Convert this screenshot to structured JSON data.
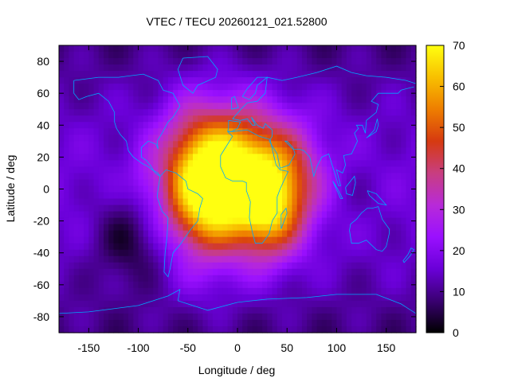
{
  "chart_data": {
    "type": "heatmap",
    "title": "VTEC / TECU 20260121_021.52800",
    "xlabel": "Longitude / deg",
    "ylabel": "Latitude / deg",
    "xlim": [
      -180,
      180
    ],
    "ylim": [
      -90,
      90
    ],
    "x_ticks": [
      -150,
      -100,
      -50,
      0,
      50,
      100,
      150
    ],
    "y_ticks": [
      -80,
      -60,
      -40,
      -20,
      0,
      20,
      40,
      60,
      80
    ],
    "colorbar": {
      "range": [
        0,
        70
      ],
      "ticks": [
        0,
        10,
        20,
        30,
        40,
        50,
        60,
        70
      ],
      "colors": [
        "#000000",
        "#3a0072",
        "#6a00d8",
        "#9a10ff",
        "#b82ad8",
        "#c83e80",
        "#d63a10",
        "#ee7e00",
        "#f8c000",
        "#ffff10"
      ]
    },
    "hotspots": [
      {
        "lon": 0,
        "lat": 10,
        "peak_tecu": 68,
        "lon_spread": 35,
        "lat_spread": 28
      },
      {
        "lon": -30,
        "lat": -10,
        "peak_tecu": 40,
        "lon_spread": 25,
        "lat_spread": 30
      },
      {
        "lon": -50,
        "lat": 10,
        "peak_tecu": 38,
        "lon_spread": 25,
        "lat_spread": 30
      },
      {
        "lon": 30,
        "lat": -15,
        "peak_tecu": 45,
        "lon_spread": 22,
        "lat_spread": 22
      },
      {
        "lon": 55,
        "lat": 5,
        "peak_tecu": 35,
        "lon_spread": 25,
        "lat_spread": 25
      },
      {
        "lon": -95,
        "lat": 5,
        "peak_tecu": 22,
        "lon_spread": 10,
        "lat_spread": 15
      },
      {
        "lon": 120,
        "lat": -5,
        "peak_tecu": 14,
        "lon_spread": 25,
        "lat_spread": 15
      },
      {
        "lon": -30,
        "lat": -40,
        "peak_tecu": 14,
        "lon_spread": 35,
        "lat_spread": 10
      },
      {
        "lon": -110,
        "lat": -30,
        "peak_tecu": 6,
        "lon_spread": 25,
        "lat_spread": 20
      }
    ],
    "background_tecu": 17,
    "polar_tecu": 9
  }
}
